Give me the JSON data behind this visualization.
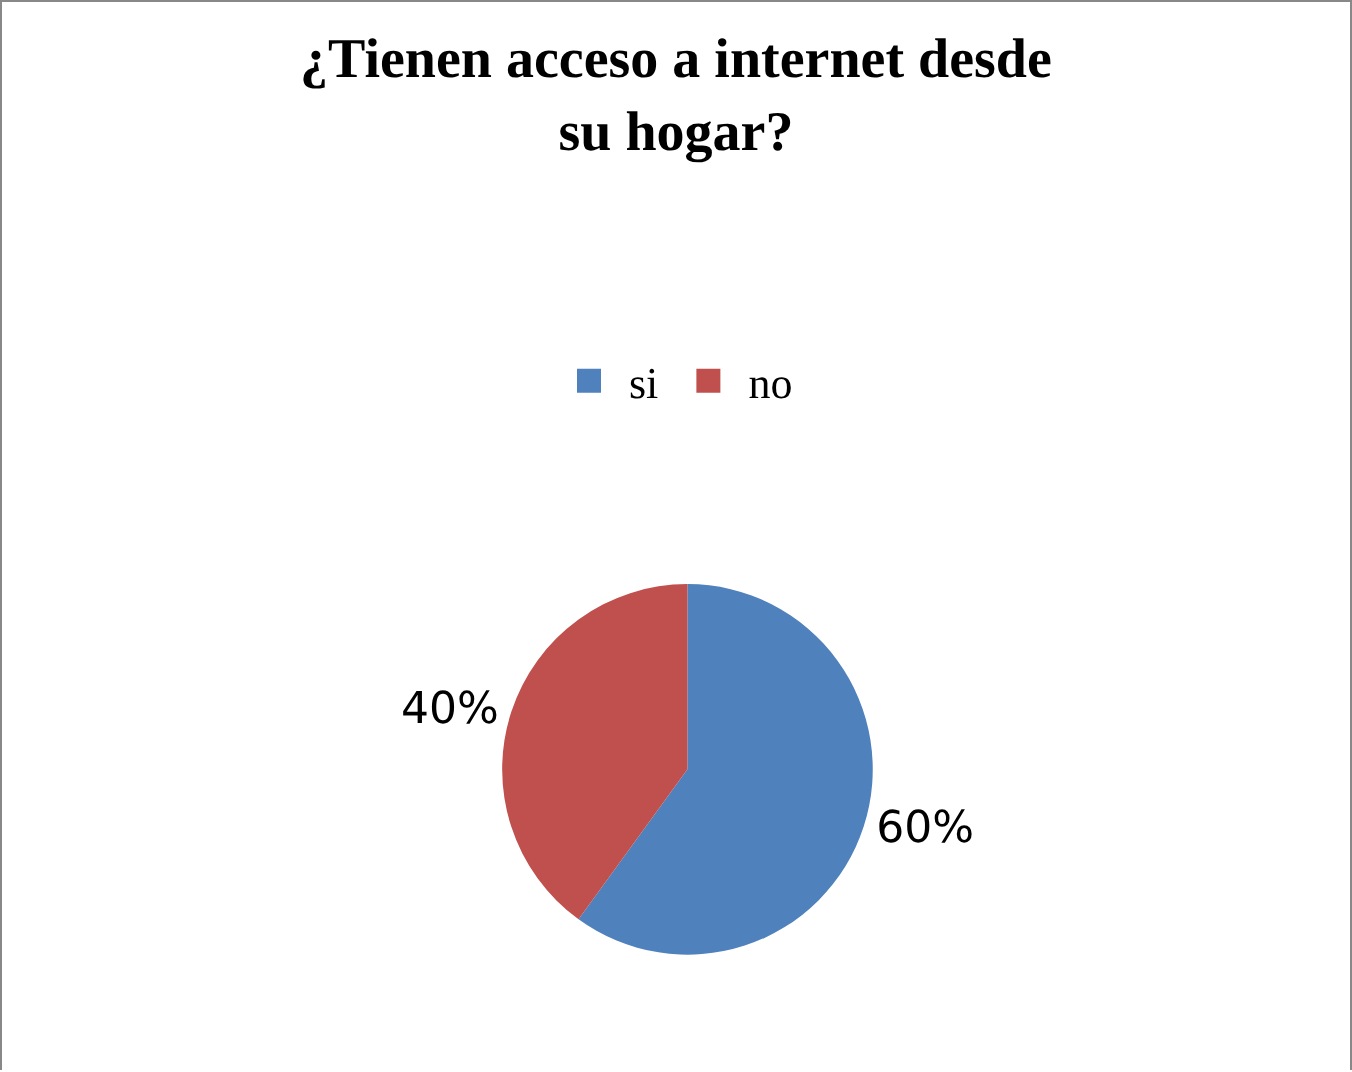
{
  "chart_data": {
    "type": "pie",
    "title": "¿Tienen acceso a internet desde su hogar?",
    "categories": [
      "si",
      "no"
    ],
    "values": [
      60,
      40
    ],
    "colors": [
      "#4f81bd",
      "#c0504d"
    ],
    "value_labels": [
      "60%",
      "40%"
    ],
    "legend": "top"
  }
}
